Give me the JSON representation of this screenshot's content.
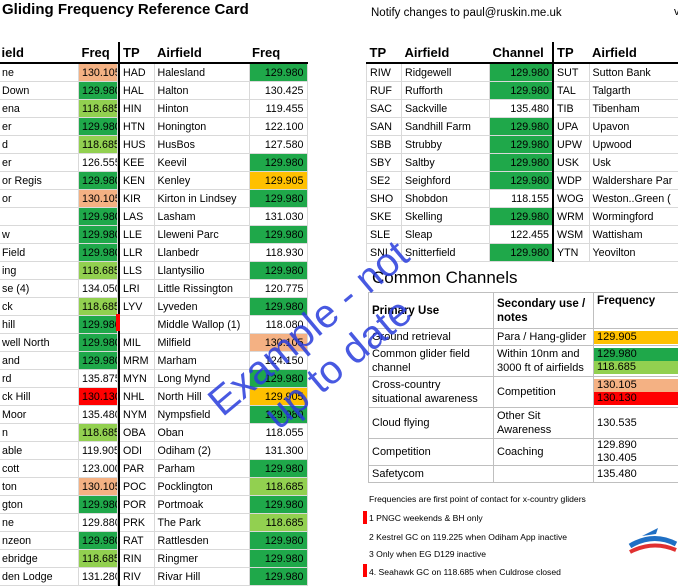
{
  "header": {
    "title": "Gliding Frequency Reference Card",
    "notify": "Notify changes to paul@ruskin.me.uk",
    "corner": "v"
  },
  "colors": {
    "dark_green": "#1fa84a",
    "light_green": "#92d050",
    "salmon": "#f4b183",
    "orange": "#ffc000",
    "red": "#ff0000"
  },
  "col1": {
    "headers": {
      "airfield": "ield",
      "freq": "Freq"
    },
    "rows": [
      {
        "airfield": "ne",
        "freq": "130.105",
        "color": "sal"
      },
      {
        "airfield": " Down",
        "freq": "129.980",
        "color": "dg"
      },
      {
        "airfield": "ena",
        "freq": "118.685",
        "color": "lg"
      },
      {
        "airfield": "er",
        "freq": "129.980",
        "color": "dg"
      },
      {
        "airfield": "d",
        "freq": "118.685",
        "color": "lg"
      },
      {
        "airfield": "er",
        "freq": "126.555",
        "color": ""
      },
      {
        "airfield": "or Regis",
        "freq": "129.980",
        "color": "dg"
      },
      {
        "airfield": "or",
        "freq": "130.105",
        "color": "sal"
      },
      {
        "airfield": "",
        "freq": "129.980",
        "color": "dg"
      },
      {
        "airfield": "w",
        "freq": "129.980",
        "color": "dg"
      },
      {
        "airfield": " Field",
        "freq": "129.980",
        "color": "dg"
      },
      {
        "airfield": "ing",
        "freq": "118.685",
        "color": "lg"
      },
      {
        "airfield": "se (4)",
        "freq": "134.050",
        "color": ""
      },
      {
        "airfield": "ck",
        "freq": "118.685",
        "color": "lg"
      },
      {
        "airfield": "hill",
        "freq": "129.980",
        "color": "dg"
      },
      {
        "airfield": "well North",
        "freq": "129.980",
        "color": "dg"
      },
      {
        "airfield": "and",
        "freq": "129.980",
        "color": "dg"
      },
      {
        "airfield": "rd",
        "freq": "135.875",
        "color": ""
      },
      {
        "airfield": "ck Hill",
        "freq": "130.130",
        "color": "rd"
      },
      {
        "airfield": " Moor",
        "freq": "135.480",
        "color": ""
      },
      {
        "airfield": "n",
        "freq": "118.685",
        "color": "lg"
      },
      {
        "airfield": "able",
        "freq": "119.905",
        "color": ""
      },
      {
        "airfield": "cott",
        "freq": "123.000",
        "color": ""
      },
      {
        "airfield": "ton",
        "freq": "130.105",
        "color": "sal"
      },
      {
        "airfield": "gton",
        "freq": "129.980",
        "color": "dg"
      },
      {
        "airfield": "ne",
        "freq": "129.880",
        "color": ""
      },
      {
        "airfield": "nzeon",
        "freq": "129.980",
        "color": "dg"
      },
      {
        "airfield": "ebridge",
        "freq": "118.685",
        "color": "lg"
      },
      {
        "airfield": "den Lodge",
        "freq": "131.280",
        "color": ""
      }
    ]
  },
  "col2": {
    "headers": {
      "tp": "TP",
      "airfield": "Airfield",
      "freq": "Freq"
    },
    "rows": [
      {
        "tp": "HAD",
        "airfield": "Halesland",
        "freq": "129.980",
        "color": "dg"
      },
      {
        "tp": "HAL",
        "airfield": "Halton",
        "freq": "130.425",
        "color": ""
      },
      {
        "tp": "HIN",
        "airfield": "Hinton",
        "freq": "119.455",
        "color": ""
      },
      {
        "tp": "HTN",
        "airfield": "Honington",
        "freq": "122.100",
        "color": ""
      },
      {
        "tp": "HUS",
        "airfield": "HusBos",
        "freq": "127.580",
        "color": ""
      },
      {
        "tp": "KEE",
        "airfield": "Keevil",
        "freq": "129.980",
        "color": "dg"
      },
      {
        "tp": "KEN",
        "airfield": "Kenley",
        "freq": "129.905",
        "color": "or"
      },
      {
        "tp": "KIR",
        "airfield": "Kirton in Lindsey",
        "freq": "129.980",
        "color": "dg"
      },
      {
        "tp": "LAS",
        "airfield": "Lasham",
        "freq": "131.030",
        "color": ""
      },
      {
        "tp": "LLE",
        "airfield": "Lleweni Parc",
        "freq": "129.980",
        "color": "dg"
      },
      {
        "tp": "LLR",
        "airfield": "Llanbedr",
        "freq": "118.930",
        "color": ""
      },
      {
        "tp": "LLS",
        "airfield": "Llantysilio",
        "freq": "129.980",
        "color": "dg"
      },
      {
        "tp": "LRI",
        "airfield": "Little Rissington",
        "freq": "120.775",
        "color": ""
      },
      {
        "tp": "LYV",
        "airfield": "Lyveden",
        "freq": "129.980",
        "color": "dg"
      },
      {
        "tp": "",
        "airfield": "Middle Wallop (1)",
        "freq": "118.080",
        "color": ""
      },
      {
        "tp": "MIL",
        "airfield": "Milfield",
        "freq": "130.105",
        "color": "sal"
      },
      {
        "tp": "MRM",
        "airfield": "Marham",
        "freq": "124.150",
        "color": ""
      },
      {
        "tp": "MYN",
        "airfield": "Long Mynd",
        "freq": "129.980",
        "color": "dg"
      },
      {
        "tp": "NHL",
        "airfield": "North Hill",
        "freq": "129.905",
        "color": "or"
      },
      {
        "tp": "NYM",
        "airfield": "Nympsfield",
        "freq": "129.980",
        "color": "dg"
      },
      {
        "tp": "OBA",
        "airfield": "Oban",
        "freq": "118.055",
        "color": ""
      },
      {
        "tp": "ODI",
        "airfield": "Odiham (2)",
        "freq": "131.300",
        "color": ""
      },
      {
        "tp": "PAR",
        "airfield": "Parham",
        "freq": "129.980",
        "color": "dg"
      },
      {
        "tp": "POC",
        "airfield": "Pocklington",
        "freq": "118.685",
        "color": "lg"
      },
      {
        "tp": "POR",
        "airfield": "Portmoak",
        "freq": "129.980",
        "color": "dg"
      },
      {
        "tp": "PRK",
        "airfield": "The Park",
        "freq": "118.685",
        "color": "lg"
      },
      {
        "tp": "RAT",
        "airfield": "Rattlesden",
        "freq": "129.980",
        "color": "dg"
      },
      {
        "tp": "RIN",
        "airfield": "Ringmer",
        "freq": "129.980",
        "color": "dg"
      },
      {
        "tp": "RIV",
        "airfield": "Rivar Hill",
        "freq": "129.980",
        "color": "dg"
      }
    ]
  },
  "col3": {
    "headers": {
      "tp": "TP",
      "airfield": "Airfield",
      "channel": "Channel"
    },
    "rows": [
      {
        "tp": "RIW",
        "airfield": "Ridgewell",
        "freq": "129.980",
        "color": "dg"
      },
      {
        "tp": "RUF",
        "airfield": "Rufforth",
        "freq": "129.980",
        "color": "dg"
      },
      {
        "tp": "SAC",
        "airfield": "Sackville",
        "freq": "135.480",
        "color": ""
      },
      {
        "tp": "SAN",
        "airfield": "Sandhill Farm",
        "freq": "129.980",
        "color": "dg"
      },
      {
        "tp": "SBB",
        "airfield": "Strubby",
        "freq": "129.980",
        "color": "dg"
      },
      {
        "tp": "SBY",
        "airfield": "Saltby",
        "freq": "129.980",
        "color": "dg"
      },
      {
        "tp": "SE2",
        "airfield": "Seighford",
        "freq": "129.980",
        "color": "dg"
      },
      {
        "tp": "SHO",
        "airfield": "Shobdon",
        "freq": "118.155",
        "color": ""
      },
      {
        "tp": "SKE",
        "airfield": "Skelling",
        "freq": "129.980",
        "color": "dg"
      },
      {
        "tp": "SLE",
        "airfield": "Sleap",
        "freq": "122.455",
        "color": ""
      },
      {
        "tp": "SNI",
        "airfield": "Snitterfield",
        "freq": "129.980",
        "color": "dg"
      }
    ]
  },
  "col4": {
    "headers": {
      "tp": "TP",
      "airfield": "Airfield"
    },
    "rows": [
      {
        "tp": "SUT",
        "airfield": "Sutton Bank"
      },
      {
        "tp": "TAL",
        "airfield": "Talgarth"
      },
      {
        "tp": "TIB",
        "airfield": "Tibenham"
      },
      {
        "tp": "UPA",
        "airfield": "Upavon"
      },
      {
        "tp": "UPW",
        "airfield": "Upwood"
      },
      {
        "tp": "USK",
        "airfield": "Usk"
      },
      {
        "tp": "WDP",
        "airfield": "Waldershare Par"
      },
      {
        "tp": "WOG",
        "airfield": "Weston..Green ("
      },
      {
        "tp": "WRM",
        "airfield": "Wormingford"
      },
      {
        "tp": "WSM",
        "airfield": "Wattisham"
      },
      {
        "tp": "YTN",
        "airfield": "Yeovilton"
      }
    ]
  },
  "common_channels": {
    "title": "Common Channels",
    "headers": {
      "primary": "Primary Use",
      "secondary": "Secondary use / notes",
      "frequency": "Frequency"
    },
    "rows": [
      {
        "primary": "Ground retrieval",
        "secondary": "Para / Hang-glider",
        "freqs": [
          {
            "v": "129.905",
            "c": "or"
          }
        ]
      },
      {
        "primary": "Common glider field channel",
        "secondary": "Within 10nm and 3000 ft of  airfields",
        "freqs": [
          {
            "v": "129.980",
            "c": "dg"
          },
          {
            "v": "118.685",
            "c": "lg"
          }
        ]
      },
      {
        "primary": "Cross-country situational awareness",
        "secondary": "Competition",
        "freqs": [
          {
            "v": "130.105",
            "c": "sal"
          },
          {
            "v": "130.130",
            "c": "rd"
          }
        ]
      },
      {
        "primary": "Cloud flying",
        "secondary": "Other Sit Awareness",
        "freqs": [
          {
            "v": "130.535",
            "c": ""
          }
        ]
      },
      {
        "primary": "Competition",
        "secondary": "Coaching",
        "freqs": [
          {
            "v": "129.890",
            "c": ""
          },
          {
            "v": "130.405",
            "c": ""
          }
        ]
      },
      {
        "primary": "Safetycom",
        "secondary": "",
        "freqs": [
          {
            "v": "135.480",
            "c": ""
          }
        ]
      }
    ]
  },
  "notes": {
    "intro": "Frequencies are first point of contact for x-country gliders",
    "items": [
      "1 PNGC weekends & BH only",
      "2 Kestrel GC on 119.225 when Odiham App inactive",
      "3 Only when EG D129 inactive",
      "4. Seahawk GC on 118.685 when Culdrose closed"
    ]
  },
  "watermark": {
    "line1": "Example - not",
    "line2": "up to date"
  }
}
